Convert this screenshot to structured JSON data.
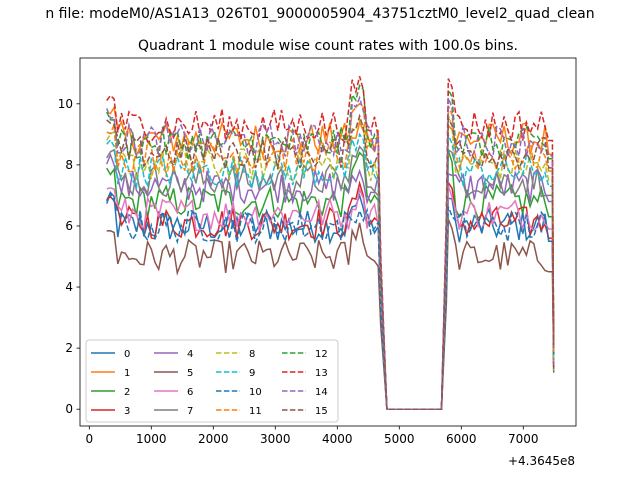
{
  "figure_title": "n file: modeM0/AS1A13_026T01_9000005904_43751cztM0_level2_quad_clean",
  "chart_data": {
    "type": "line",
    "title": "Quadrant 1 module wise count rates with 100.0s bins.",
    "xlabel": "",
    "ylabel": "",
    "offset_label": "+4.3645e8",
    "xlim": [
      -150,
      7850
    ],
    "ylim": [
      -0.55,
      11.5
    ],
    "xticks": [
      0,
      1000,
      2000,
      3000,
      4000,
      5000,
      6000,
      7000
    ],
    "yticks": [
      0,
      2,
      4,
      6,
      8,
      10
    ],
    "grid": false,
    "legend_position": "lower-left",
    "legend_columns": 4,
    "segments": [
      {
        "start": 280,
        "end": 4700,
        "step": 60
      },
      {
        "start": 5790,
        "end": 7490,
        "step": 60
      }
    ],
    "gap_x": [
      4700,
      4800,
      5680,
      5790
    ],
    "series": [
      {
        "name": "0",
        "color": "#1f77b4",
        "dash": "solid",
        "level": 6.0,
        "peak": 7.0
      },
      {
        "name": "1",
        "color": "#ff7f0e",
        "dash": "solid",
        "level": 8.85,
        "peak": 9.4
      },
      {
        "name": "2",
        "color": "#2ca02c",
        "dash": "solid",
        "level": 6.8,
        "peak": 8.4
      },
      {
        "name": "3",
        "color": "#d62728",
        "dash": "solid",
        "level": 6.1,
        "peak": 7.4
      },
      {
        "name": "4",
        "color": "#9467bd",
        "dash": "solid",
        "level": 7.3,
        "peak": 7.8
      },
      {
        "name": "5",
        "color": "#8c564b",
        "dash": "solid",
        "level": 5.0,
        "peak": 6.1
      },
      {
        "name": "6",
        "color": "#e377c2",
        "dash": "solid",
        "level": 6.4,
        "peak": 7.2
      },
      {
        "name": "7",
        "color": "#7f7f7f",
        "dash": "solid",
        "level": 7.5,
        "peak": 8.6
      },
      {
        "name": "8",
        "color": "#bcbd22",
        "dash": "dashed",
        "level": 8.0,
        "peak": 9.5
      },
      {
        "name": "9",
        "color": "#17becf",
        "dash": "dashed",
        "level": 7.8,
        "peak": 9.0
      },
      {
        "name": "10",
        "color": "#1f77b4",
        "dash": "dashed",
        "level": 6.0,
        "peak": 6.5
      },
      {
        "name": "11",
        "color": "#ff7f0e",
        "dash": "dashed",
        "level": 8.3,
        "peak": 10.0
      },
      {
        "name": "12",
        "color": "#2ca02c",
        "dash": "dashed",
        "level": 8.7,
        "peak": 10.6
      },
      {
        "name": "13",
        "color": "#d62728",
        "dash": "dashed",
        "level": 9.3,
        "peak": 10.9
      },
      {
        "name": "14",
        "color": "#9467bd",
        "dash": "dashed",
        "level": 8.8,
        "peak": 10.2
      },
      {
        "name": "15",
        "color": "#8c564b",
        "dash": "dashed",
        "level": 8.4,
        "peak": 9.6
      }
    ]
  }
}
